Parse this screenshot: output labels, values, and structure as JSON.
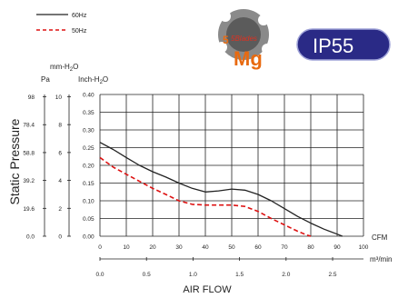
{
  "chart_data": {
    "type": "line",
    "xlabel": "AIR FLOW",
    "ylabel": "Static Pressure",
    "x_unit": "CFM",
    "x2_unit": "m³/min",
    "xlim": [
      0,
      100
    ],
    "ylim": [
      0,
      0.4
    ],
    "x_ticks": [
      "0",
      "10",
      "20",
      "30",
      "40",
      "50",
      "60",
      "70",
      "80",
      "90",
      "100"
    ],
    "x2_ticks": [
      "0.0",
      "0.5",
      "1.0",
      "1.5",
      "2.0",
      "2.5"
    ],
    "x2_tick_values": [
      0.0,
      0.5,
      1.0,
      1.5,
      2.0,
      2.5
    ],
    "y_inch_ticks": [
      "0.00",
      "0.05",
      "0.10",
      "0.15",
      "0.20",
      "0.25",
      "0.30",
      "0.35",
      "0.40"
    ],
    "y_mm_ticks": [
      "0",
      "2",
      "4",
      "6",
      "8",
      "10"
    ],
    "y_pa_ticks": [
      "0.0",
      "19.6",
      "39.2",
      "58.8",
      "78.4",
      "98"
    ],
    "y_pa_label": "Pa",
    "y_mm_label": "mm-H2O",
    "y_inch_label": "Inch-H2O",
    "series": [
      {
        "name": "60Hz",
        "color": "#222222",
        "style": "solid",
        "x": [
          0,
          5,
          10,
          15,
          20,
          25,
          30,
          35,
          40,
          45,
          50,
          55,
          60,
          65,
          70,
          75,
          80,
          85,
          90,
          92
        ],
        "y": [
          0.265,
          0.245,
          0.222,
          0.2,
          0.182,
          0.167,
          0.15,
          0.135,
          0.125,
          0.128,
          0.133,
          0.13,
          0.118,
          0.1,
          0.078,
          0.056,
          0.037,
          0.02,
          0.006,
          0.0
        ]
      },
      {
        "name": "50Hz",
        "color": "#dd1111",
        "style": "dashed",
        "x": [
          0,
          5,
          10,
          15,
          20,
          25,
          30,
          35,
          40,
          45,
          50,
          55,
          60,
          65,
          70,
          75,
          78,
          80
        ],
        "y": [
          0.222,
          0.195,
          0.175,
          0.155,
          0.135,
          0.118,
          0.1,
          0.09,
          0.088,
          0.088,
          0.088,
          0.084,
          0.07,
          0.05,
          0.032,
          0.014,
          0.005,
          0.0
        ]
      }
    ]
  },
  "badges": {
    "ip_rating": "IP55",
    "logo_small": "5Blades",
    "logo_main": "Mg"
  },
  "colors": {
    "badge_bg": "#2a2a86",
    "logo_orange": "#e86a10"
  }
}
